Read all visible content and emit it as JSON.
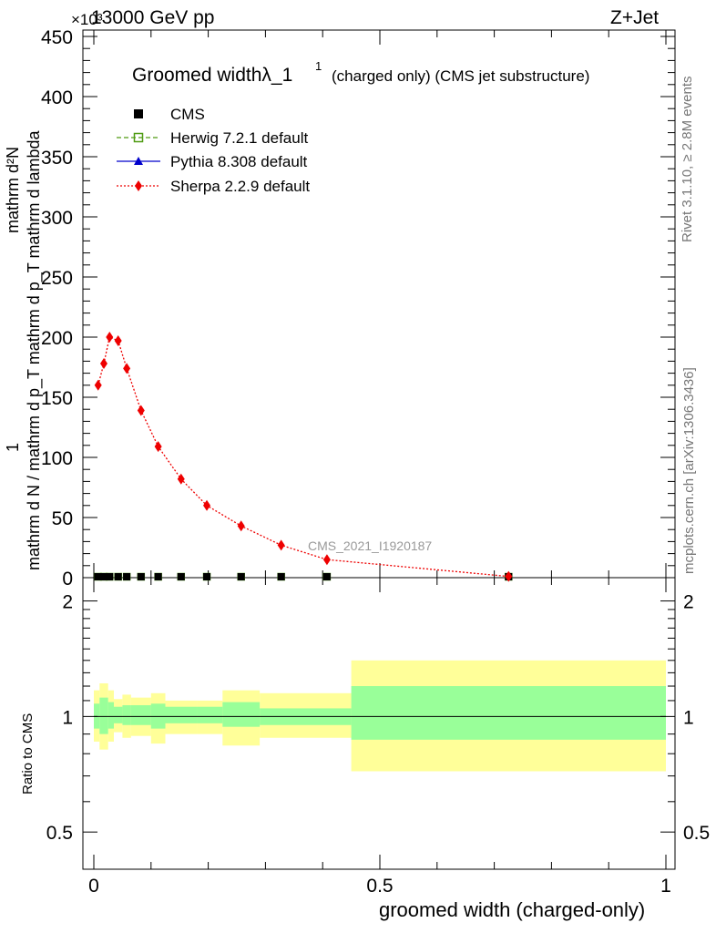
{
  "header": {
    "energy_label": "13000 GeV pp",
    "process_label": "Z+Jet",
    "scale_label": "×10³"
  },
  "side_labels": {
    "rivet": "Rivet 3.1.10, ≥ 2.8M events",
    "mcplots": "mcplots.cern.ch [arXiv:1306.3436]"
  },
  "watermark": "CMS_2021_I1920187",
  "chart_data": [
    {
      "type": "line",
      "title": "Groomed widthλ_1",
      "title_sup": "1",
      "subtitle": "(charged only) (CMS jet substructure)",
      "ylabel_top": "1",
      "ylabel_num": "mathrm d²N",
      "ylabel_den": "mathrm d N / mathrm d p_T mathrm d p_T mathrm d lambda",
      "xlim": [
        0,
        1
      ],
      "ylim": [
        0,
        450000
      ],
      "yticks": [
        0,
        50,
        100,
        150,
        200,
        250,
        300,
        350,
        400,
        450
      ],
      "legend_position": "top-left",
      "legend": [
        {
          "name": "CMS",
          "color": "#000000",
          "marker": "square-filled",
          "line": "none"
        },
        {
          "name": "Herwig 7.2.1 default",
          "color": "#4f9b12",
          "marker": "square-open",
          "line": "dashed"
        },
        {
          "name": "Pythia 8.308 default",
          "color": "#0000cc",
          "marker": "triangle",
          "line": "solid"
        },
        {
          "name": "Sherpa 2.2.9 default",
          "color": "#ee0000",
          "marker": "diamond",
          "line": "dotted"
        }
      ],
      "series": [
        {
          "name": "Sherpa 2.2.9 default",
          "x": [
            0.0075,
            0.0175,
            0.0275,
            0.0425,
            0.0575,
            0.0825,
            0.1125,
            0.1525,
            0.1975,
            0.2575,
            0.3275,
            0.4075,
            0.725
          ],
          "y": [
            160000,
            178000,
            200000,
            197000,
            174000,
            139000,
            109000,
            82000,
            60000,
            43000,
            27000,
            15000,
            1000
          ]
        },
        {
          "name": "CMS",
          "x": [
            0.0075,
            0.0175,
            0.0275,
            0.0425,
            0.0575,
            0.0825,
            0.1125,
            0.1525,
            0.1975,
            0.2575,
            0.3275,
            0.4075,
            0.725
          ],
          "y": [
            0,
            0,
            0,
            0,
            0,
            0,
            0,
            0,
            0,
            0,
            0,
            0,
            0
          ]
        },
        {
          "name": "Herwig 7.2.1 default",
          "x": [
            0.0075,
            0.0175,
            0.0275,
            0.0425,
            0.0575,
            0.0825,
            0.1125,
            0.1525,
            0.1975,
            0.2575,
            0.3275,
            0.4075,
            0.725
          ],
          "y": [
            0,
            0,
            0,
            0,
            0,
            0,
            0,
            0,
            0,
            0,
            0,
            0,
            0
          ]
        },
        {
          "name": "Pythia 8.308 default",
          "x": [
            0.0075,
            0.0175,
            0.0275,
            0.0425,
            0.0575,
            0.0825,
            0.1125,
            0.1525,
            0.1975,
            0.2575,
            0.3275,
            0.4075,
            0.725
          ],
          "y": [
            0,
            0,
            0,
            0,
            0,
            0,
            0,
            0,
            0,
            0,
            0,
            0,
            0
          ]
        }
      ]
    },
    {
      "type": "area",
      "ylabel": "Ratio to CMS",
      "xlabel": "groomed width (charged-only)",
      "xlim": [
        0,
        1
      ],
      "ylim": [
        0.4,
        2.3
      ],
      "ytick_labels": [
        "0.5",
        "1",
        "2"
      ],
      "yticks": [
        0.5,
        1,
        2
      ],
      "xtick_labels": [
        "0",
        "0.5",
        "1"
      ],
      "xticks": [
        0,
        0.5,
        1
      ],
      "reference_line": 1,
      "colors": {
        "band_outer": "#ffff99",
        "band_inner": "#99ff99"
      },
      "bins": [
        {
          "x0": 0.0,
          "x1": 0.01,
          "inner": [
            0.93,
            1.08
          ],
          "outer": [
            0.86,
            1.17
          ]
        },
        {
          "x0": 0.01,
          "x1": 0.025,
          "inner": [
            0.9,
            1.12
          ],
          "outer": [
            0.82,
            1.22
          ]
        },
        {
          "x0": 0.025,
          "x1": 0.035,
          "inner": [
            0.93,
            1.09
          ],
          "outer": [
            0.86,
            1.17
          ]
        },
        {
          "x0": 0.035,
          "x1": 0.05,
          "inner": [
            0.96,
            1.06
          ],
          "outer": [
            0.91,
            1.11
          ]
        },
        {
          "x0": 0.05,
          "x1": 0.065,
          "inner": [
            0.95,
            1.07
          ],
          "outer": [
            0.88,
            1.14
          ]
        },
        {
          "x0": 0.065,
          "x1": 0.1,
          "inner": [
            0.95,
            1.07
          ],
          "outer": [
            0.89,
            1.12
          ]
        },
        {
          "x0": 0.1,
          "x1": 0.125,
          "inner": [
            0.93,
            1.08
          ],
          "outer": [
            0.85,
            1.15
          ]
        },
        {
          "x0": 0.125,
          "x1": 0.18,
          "inner": [
            0.96,
            1.06
          ],
          "outer": [
            0.9,
            1.1
          ]
        },
        {
          "x0": 0.18,
          "x1": 0.225,
          "inner": [
            0.96,
            1.06
          ],
          "outer": [
            0.9,
            1.1
          ]
        },
        {
          "x0": 0.225,
          "x1": 0.29,
          "inner": [
            0.94,
            1.09
          ],
          "outer": [
            0.84,
            1.17
          ]
        },
        {
          "x0": 0.29,
          "x1": 0.45,
          "inner": [
            0.95,
            1.05
          ],
          "outer": [
            0.88,
            1.15
          ]
        },
        {
          "x0": 0.45,
          "x1": 1.0,
          "inner": [
            0.87,
            1.2
          ],
          "outer": [
            0.72,
            1.4
          ]
        }
      ]
    }
  ]
}
